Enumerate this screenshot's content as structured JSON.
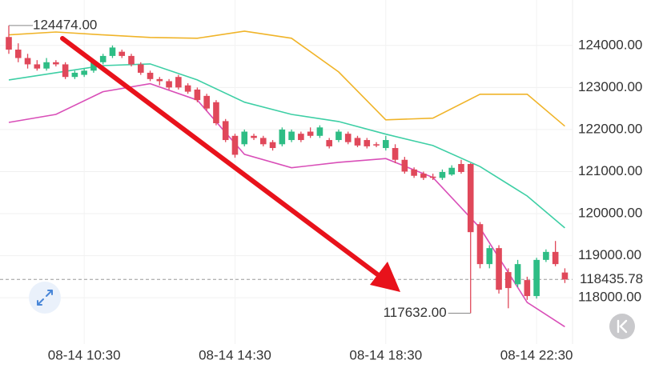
{
  "chart_data": {
    "type": "candlestick",
    "categories": [
      null,
      null,
      null,
      null,
      null,
      null,
      null,
      null,
      "08-14 10:30",
      null,
      null,
      null,
      null,
      null,
      null,
      null,
      null,
      null,
      null,
      null,
      null,
      null,
      null,
      null,
      "08-14 14:30",
      null,
      null,
      null,
      null,
      null,
      null,
      null,
      null,
      null,
      null,
      null,
      null,
      null,
      null,
      null,
      "08-14 18:30",
      null,
      null,
      null,
      null,
      null,
      null,
      null,
      null,
      null,
      null,
      null,
      null,
      null,
      null,
      null,
      "08-14 22:30",
      null,
      null,
      null
    ],
    "open": [
      124200,
      123900,
      123700,
      123550,
      123450,
      123600,
      123550,
      123250,
      123300,
      123400,
      123600,
      123750,
      123850,
      123750,
      123550,
      123350,
      123200,
      123150,
      123250,
      123050,
      122950,
      122800,
      122650,
      122200,
      121850,
      121650,
      121850,
      121800,
      121700,
      121650,
      121750,
      121900,
      121950,
      121850,
      121750,
      121750,
      121900,
      121800,
      121750,
      121650,
      121560,
      121560,
      121280,
      121050,
      120950,
      120880,
      120850,
      120930,
      121180,
      121180,
      119750,
      118800,
      119180,
      118610,
      118320,
      118420,
      118040,
      118900,
      119090,
      118600
    ],
    "high": [
      124474,
      124050,
      123800,
      123650,
      123700,
      123650,
      123600,
      123400,
      123450,
      123650,
      123800,
      124000,
      123900,
      123800,
      123600,
      123400,
      123250,
      123200,
      123300,
      123100,
      123000,
      122850,
      122700,
      122250,
      121900,
      122000,
      121900,
      121850,
      121750,
      122050,
      122000,
      121950,
      122050,
      122100,
      121800,
      122000,
      121950,
      121850,
      121800,
      121700,
      121850,
      121650,
      121350,
      121100,
      121000,
      120950,
      121050,
      121150,
      121280,
      121200,
      119800,
      119250,
      119250,
      118700,
      118900,
      118500,
      118950,
      119150,
      119350,
      118700
    ],
    "low": [
      123800,
      123600,
      123450,
      123400,
      123400,
      123500,
      123200,
      123200,
      123250,
      123350,
      123550,
      123700,
      123700,
      123500,
      123300,
      123150,
      123050,
      122950,
      122950,
      122850,
      122650,
      122450,
      122100,
      121700,
      121330,
      121600,
      121750,
      121600,
      121500,
      121600,
      121700,
      121700,
      121800,
      121800,
      121550,
      121700,
      121650,
      121580,
      121550,
      121580,
      121500,
      121200,
      120950,
      120850,
      120800,
      120800,
      120800,
      120900,
      120950,
      117632,
      118700,
      118700,
      118100,
      117750,
      118250,
      117950,
      117980,
      118850,
      118750,
      118350
    ],
    "close": [
      123900,
      123700,
      123550,
      123450,
      123600,
      123550,
      123250,
      123350,
      123400,
      123600,
      123750,
      123950,
      123750,
      123550,
      123350,
      123200,
      123150,
      123000,
      123000,
      122900,
      122700,
      122500,
      122150,
      121750,
      121400,
      121950,
      121800,
      121650,
      121560,
      122000,
      121950,
      121750,
      121850,
      122050,
      121600,
      121950,
      121700,
      121620,
      121600,
      121620,
      121750,
      121280,
      121000,
      120900,
      120850,
      120850,
      120990,
      121090,
      120990,
      119560,
      118800,
      119180,
      118190,
      118230,
      118800,
      118040,
      118900,
      119090,
      118800,
      118435.78
    ],
    "up_color": "#2ebd85",
    "down_color": "#e0485a",
    "bands": [
      {
        "color": "#f0b429",
        "x": [
          0,
          5,
          10,
          15,
          20,
          25,
          30,
          35,
          40,
          45,
          50,
          55,
          59
        ],
        "values": [
          124250,
          124320,
          124250,
          124190,
          124170,
          124340,
          124170,
          123370,
          122230,
          122270,
          122840,
          122840,
          122080
        ]
      },
      {
        "color": "#3ecfa5",
        "x": [
          0,
          5,
          10,
          15,
          20,
          25,
          30,
          35,
          40,
          45,
          50,
          55,
          59
        ],
        "values": [
          123180,
          123350,
          123520,
          123560,
          123180,
          122650,
          122360,
          122190,
          121890,
          121620,
          121120,
          120420,
          119660
        ]
      },
      {
        "color": "#d94fb8",
        "x": [
          0,
          5,
          10,
          15,
          20,
          25,
          30,
          35,
          40,
          45,
          50,
          55,
          59
        ],
        "values": [
          122170,
          122360,
          122900,
          123090,
          122700,
          121410,
          121090,
          121220,
          121310,
          120860,
          119660,
          117890,
          117310
        ]
      }
    ],
    "ylim": [
      116900,
      125080
    ],
    "yticks": [
      {
        "value": 118000,
        "label": "118000.00"
      },
      {
        "value": 119000,
        "label": "119000.00"
      },
      {
        "value": 120000,
        "label": "120000.00"
      },
      {
        "value": 121000,
        "label": "121000.00"
      },
      {
        "value": 122000,
        "label": "122000.00"
      },
      {
        "value": 123000,
        "label": "123000.00"
      },
      {
        "value": 124000,
        "label": "124000.00"
      }
    ],
    "high_marker": {
      "value": 124474,
      "label": "124474.00",
      "index": 0
    },
    "low_marker": {
      "value": 117632,
      "label": "117632.00",
      "index": 49
    },
    "last_price": {
      "value": 118435.78,
      "label": "118435.78",
      "color": "#e0485a"
    },
    "grid": true
  }
}
